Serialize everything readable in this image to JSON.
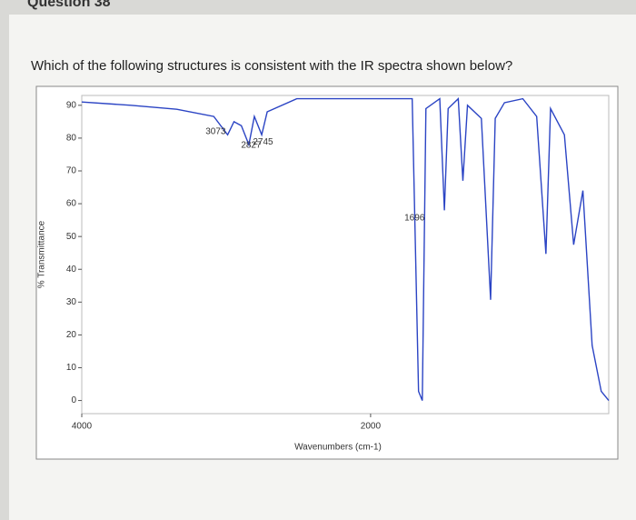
{
  "header": {
    "title": "Question 38"
  },
  "question": "Which of the following structures is consistent with the IR spectra shown below?",
  "chart_data": {
    "type": "line",
    "xlabel": "Wavenumbers (cm-1)",
    "ylabel": "% Transmittance",
    "x": [
      4000,
      3661,
      3342,
      3086,
      2990,
      2946,
      2895,
      2843,
      2805,
      2754,
      2716,
      2511,
      2000,
      1776,
      1712,
      1668,
      1642,
      1617,
      1521,
      1489,
      1463,
      1393,
      1361,
      1329,
      1233,
      1169,
      1137,
      1073,
      946,
      850,
      786,
      754,
      658,
      594,
      530,
      466,
      403,
      351
    ],
    "values": [
      91,
      90,
      88.8,
      86.6,
      81,
      85,
      83.8,
      78,
      86.6,
      81,
      88,
      92,
      92,
      92,
      92,
      2.8,
      0,
      89,
      92,
      58,
      89,
      92,
      67,
      90,
      86,
      30.7,
      86,
      90.8,
      92,
      86.6,
      44.7,
      89,
      81,
      47.5,
      64,
      16.8,
      2.8,
      0
    ],
    "color": "#2b44c4",
    "xlim": [
      4000,
      351
    ],
    "ylim": [
      -4,
      93
    ],
    "xticks": [
      4000,
      2000
    ],
    "yticks": [
      0,
      10,
      20,
      30,
      40,
      50,
      60,
      70,
      80,
      90
    ],
    "annotations": [
      {
        "x": 3073,
        "label": "3073"
      },
      {
        "x": 2745,
        "label": "2745"
      },
      {
        "x": 2827,
        "label": "2827"
      },
      {
        "x": 1696,
        "label": "1696"
      }
    ]
  }
}
